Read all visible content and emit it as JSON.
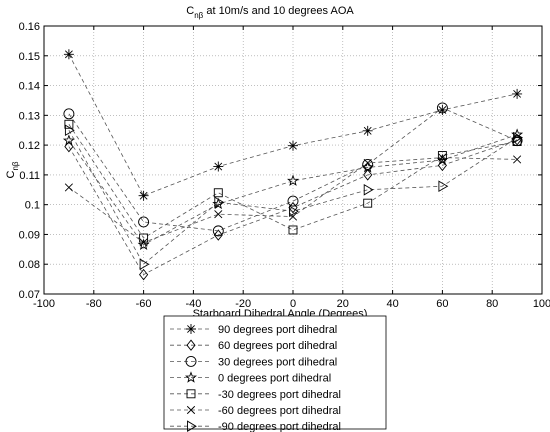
{
  "chart_data": {
    "type": "line",
    "title_main": "C",
    "title_sub": "nβ",
    "title_rest": " at 10m/s and 10 degrees AOA",
    "ylabel_main": "C",
    "ylabel_sub": "nβ",
    "xlabel": "Starboard Dihedral Angle (Degrees)",
    "xlim": [
      -100,
      100
    ],
    "ylim": [
      0.07,
      0.16
    ],
    "xticks": [
      -100,
      -80,
      -60,
      -40,
      -20,
      0,
      20,
      40,
      60,
      80,
      100
    ],
    "yticks": [
      0.07,
      0.08,
      0.09,
      0.1,
      0.11,
      0.12,
      0.13,
      0.14,
      0.15,
      0.16
    ],
    "xtick_labels": [
      "-100",
      "-80",
      "-60",
      "-40",
      "-20",
      "0",
      "20",
      "40",
      "60",
      "80",
      "100"
    ],
    "ytick_labels": [
      "0.07",
      "0.08",
      "0.09",
      "0.1",
      "0.11",
      "0.12",
      "0.13",
      "0.14",
      "0.15",
      "0.16"
    ],
    "x": [
      -90,
      -60,
      -30,
      0,
      30,
      60,
      90
    ],
    "grid": true,
    "legend_position": "below-plot",
    "series": [
      {
        "name": "90 degrees port dihedral",
        "marker": "asterisk",
        "values": [
          0.1505,
          0.103,
          0.1128,
          0.1198,
          0.1248,
          0.1318,
          0.1372
        ]
      },
      {
        "name": "60 degrees port dihedral",
        "marker": "diamond",
        "values": [
          0.1195,
          0.0765,
          0.0898,
          0.099,
          0.11,
          0.1132,
          0.1218
        ]
      },
      {
        "name": "30 degrees port dihedral",
        "marker": "circle",
        "values": [
          0.1305,
          0.0942,
          0.0912,
          0.1012,
          0.1135,
          0.1325,
          0.1215
        ]
      },
      {
        "name": "0 degrees port dihedral",
        "marker": "star",
        "values": [
          0.1215,
          0.0865,
          0.1002,
          0.108,
          0.1125,
          0.115,
          0.1235
        ]
      },
      {
        "name": "-30 degrees port dihedral",
        "marker": "square",
        "values": [
          0.127,
          0.0888,
          0.104,
          0.0915,
          0.1005,
          0.1165,
          0.1212
        ]
      },
      {
        "name": "-60 degrees port dihedral",
        "marker": "x",
        "values": [
          0.1058,
          0.0873,
          0.0968,
          0.096,
          0.114,
          0.1158,
          0.1152
        ]
      },
      {
        "name": "-90 degrees port dihedral",
        "marker": "triangle-right",
        "values": [
          0.125,
          0.08,
          0.1008,
          0.0978,
          0.105,
          0.1062,
          0.1225
        ]
      }
    ]
  }
}
